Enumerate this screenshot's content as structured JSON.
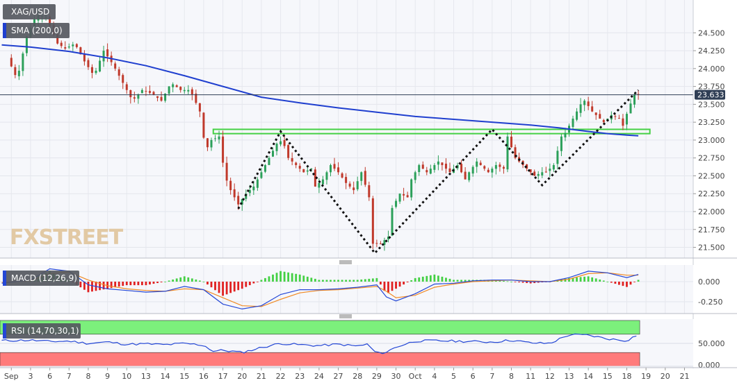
{
  "chart_data": [
    {
      "type": "candlestick",
      "symbol": "XAG/USD",
      "indicator_label": "SMA (200,0)",
      "last_price_label": "23.633",
      "last_price": 23.633,
      "watermark": "FXSTREET",
      "y_ticks": [
        "24.500",
        "24.250",
        "24.000",
        "23.750",
        "23.500",
        "23.250",
        "23.000",
        "22.750",
        "22.500",
        "22.250",
        "22.000",
        "21.750",
        "21.500"
      ],
      "ylim": [
        21.35,
        24.92
      ],
      "x_ticks": [
        {
          "label": "Sep",
          "x": 0
        },
        {
          "label": "3",
          "x": 1
        },
        {
          "label": "6",
          "x": 2
        },
        {
          "label": "7",
          "x": 3
        },
        {
          "label": "8",
          "x": 4
        },
        {
          "label": "9",
          "x": 5
        },
        {
          "label": "10",
          "x": 6
        },
        {
          "label": "13",
          "x": 7
        },
        {
          "label": "14",
          "x": 8
        },
        {
          "label": "15",
          "x": 9
        },
        {
          "label": "16",
          "x": 10
        },
        {
          "label": "17",
          "x": 11
        },
        {
          "label": "20",
          "x": 12
        },
        {
          "label": "21",
          "x": 13
        },
        {
          "label": "22",
          "x": 14
        },
        {
          "label": "23",
          "x": 15
        },
        {
          "label": "24",
          "x": 16
        },
        {
          "label": "27",
          "x": 17
        },
        {
          "label": "28",
          "x": 18
        },
        {
          "label": "29",
          "x": 19
        },
        {
          "label": "30",
          "x": 20
        },
        {
          "label": "Oct",
          "x": 21
        },
        {
          "label": "4",
          "x": 22
        },
        {
          "label": "5",
          "x": 23
        },
        {
          "label": "6",
          "x": 24
        },
        {
          "label": "7",
          "x": 25
        },
        {
          "label": "8",
          "x": 26
        },
        {
          "label": "11",
          "x": 27
        },
        {
          "label": "12",
          "x": 28
        },
        {
          "label": "13",
          "x": 29
        },
        {
          "label": "14",
          "x": 30
        },
        {
          "label": "15",
          "x": 31
        },
        {
          "label": "18",
          "x": 32
        },
        {
          "label": "19",
          "x": 33
        },
        {
          "label": "20",
          "x": 34
        },
        {
          "label": "21",
          "x": 35
        }
      ],
      "price_path": [
        [
          0,
          24.15
        ],
        [
          0.5,
          23.85
        ],
        [
          1,
          24.45
        ],
        [
          1.5,
          24.75
        ],
        [
          2,
          24.72
        ],
        [
          2.6,
          24.35
        ],
        [
          3,
          24.28
        ],
        [
          3.5,
          24.35
        ],
        [
          4,
          24.1
        ],
        [
          4.5,
          23.9
        ],
        [
          5,
          24.25
        ],
        [
          5.5,
          24.05
        ],
        [
          6,
          23.8
        ],
        [
          6.5,
          23.55
        ],
        [
          7,
          23.7
        ],
        [
          7.5,
          23.65
        ],
        [
          8,
          23.55
        ],
        [
          8.5,
          23.8
        ],
        [
          9,
          23.7
        ],
        [
          9.5,
          23.7
        ],
        [
          10,
          23.4
        ],
        [
          10.3,
          22.85
        ],
        [
          10.6,
          23.0
        ],
        [
          11,
          23.05
        ],
        [
          11.3,
          22.5
        ],
        [
          11.6,
          22.3
        ],
        [
          12,
          22.1
        ],
        [
          12.4,
          22.25
        ],
        [
          12.8,
          22.35
        ],
        [
          13.2,
          22.55
        ],
        [
          13.6,
          22.75
        ],
        [
          14,
          22.95
        ],
        [
          14.3,
          23.0
        ],
        [
          14.6,
          22.75
        ],
        [
          15,
          22.65
        ],
        [
          15.4,
          22.55
        ],
        [
          15.8,
          22.6
        ],
        [
          16,
          22.35
        ],
        [
          16.4,
          22.45
        ],
        [
          16.8,
          22.65
        ],
        [
          17.2,
          22.55
        ],
        [
          17.6,
          22.4
        ],
        [
          18,
          22.3
        ],
        [
          18.4,
          22.55
        ],
        [
          18.8,
          22.2
        ],
        [
          19,
          21.55
        ],
        [
          19.4,
          21.55
        ],
        [
          19.8,
          21.65
        ],
        [
          20,
          22.05
        ],
        [
          20.4,
          22.25
        ],
        [
          20.8,
          22.2
        ],
        [
          21,
          22.45
        ],
        [
          21.4,
          22.65
        ],
        [
          21.8,
          22.55
        ],
        [
          22,
          22.6
        ],
        [
          22.4,
          22.7
        ],
        [
          22.8,
          22.6
        ],
        [
          23,
          22.55
        ],
        [
          23.4,
          22.65
        ],
        [
          23.8,
          22.45
        ],
        [
          24,
          22.55
        ],
        [
          24.4,
          22.7
        ],
        [
          24.8,
          22.6
        ],
        [
          25,
          22.55
        ],
        [
          25.4,
          22.65
        ],
        [
          25.8,
          22.6
        ],
        [
          26,
          23.05
        ],
        [
          26.4,
          22.75
        ],
        [
          26.8,
          22.65
        ],
        [
          27,
          22.6
        ],
        [
          27.4,
          22.5
        ],
        [
          27.8,
          22.55
        ],
        [
          28,
          22.55
        ],
        [
          28.4,
          22.65
        ],
        [
          28.8,
          23.05
        ],
        [
          29,
          23.1
        ],
        [
          29.4,
          23.3
        ],
        [
          29.8,
          23.5
        ],
        [
          30,
          23.55
        ],
        [
          30.4,
          23.4
        ],
        [
          30.8,
          23.3
        ],
        [
          31,
          23.25
        ],
        [
          31.4,
          23.35
        ],
        [
          31.8,
          23.3
        ],
        [
          32,
          23.2
        ],
        [
          32.3,
          23.45
        ],
        [
          32.6,
          23.633
        ]
      ],
      "sma_200": [
        [
          -0.5,
          24.33
        ],
        [
          1,
          24.3
        ],
        [
          3,
          24.24
        ],
        [
          5,
          24.15
        ],
        [
          7,
          24.04
        ],
        [
          9,
          23.9
        ],
        [
          11,
          23.75
        ],
        [
          13,
          23.6
        ],
        [
          15,
          23.52
        ],
        [
          17,
          23.45
        ],
        [
          19,
          23.39
        ],
        [
          21,
          23.33
        ],
        [
          23,
          23.29
        ],
        [
          25,
          23.25
        ],
        [
          27,
          23.21
        ],
        [
          28.5,
          23.17
        ],
        [
          30,
          23.12
        ],
        [
          31,
          23.09
        ],
        [
          32,
          23.07
        ],
        [
          32.6,
          23.06
        ]
      ],
      "resistance_zone": {
        "x_start": 10.5,
        "x_end": 33.2,
        "low": 23.09,
        "high": 23.15
      },
      "pattern_line": [
        [
          11.8,
          22.04
        ],
        [
          14,
          23.12
        ],
        [
          18.9,
          21.42
        ],
        [
          25,
          23.15
        ],
        [
          27.6,
          22.37
        ],
        [
          32.6,
          23.7
        ]
      ],
      "candle_up_color": "#2ca05a",
      "candle_down_color": "#c0392b",
      "sma_color": "#1f3fcf",
      "zone_color": "#44d044",
      "last_price_color": "#2f3e55"
    },
    {
      "type": "macd",
      "label": "MACD (12,26,9)",
      "y_ticks": [
        "0.000",
        "-0.250"
      ],
      "ylim": [
        -0.38,
        0.19
      ],
      "macd_line": [
        [
          -0.5,
          -0.02
        ],
        [
          1,
          0.02
        ],
        [
          2,
          0.16
        ],
        [
          3,
          0.13
        ],
        [
          4,
          -0.04
        ],
        [
          5,
          -0.09
        ],
        [
          6,
          -0.11
        ],
        [
          7,
          -0.13
        ],
        [
          8,
          -0.12
        ],
        [
          9,
          -0.06
        ],
        [
          10,
          -0.1
        ],
        [
          11,
          -0.28
        ],
        [
          12,
          -0.34
        ],
        [
          13,
          -0.3
        ],
        [
          14,
          -0.16
        ],
        [
          15,
          -0.1
        ],
        [
          16,
          -0.1
        ],
        [
          17,
          -0.09
        ],
        [
          18,
          -0.07
        ],
        [
          19,
          -0.04
        ],
        [
          19.5,
          -0.19
        ],
        [
          20,
          -0.24
        ],
        [
          21,
          -0.15
        ],
        [
          22,
          -0.03
        ],
        [
          23,
          -0.02
        ],
        [
          24,
          0.01
        ],
        [
          25,
          0.02
        ],
        [
          26,
          0.02
        ],
        [
          27,
          -0.0
        ],
        [
          28,
          -0.0
        ],
        [
          29,
          0.05
        ],
        [
          30,
          0.13
        ],
        [
          31,
          0.11
        ],
        [
          32,
          0.05
        ],
        [
          32.6,
          0.09
        ]
      ],
      "signal_line": [
        [
          -0.5,
          -0.01
        ],
        [
          1,
          0.01
        ],
        [
          2,
          0.1
        ],
        [
          3,
          0.12
        ],
        [
          4,
          0.02
        ],
        [
          5,
          -0.05
        ],
        [
          6,
          -0.09
        ],
        [
          7,
          -0.11
        ],
        [
          8,
          -0.12
        ],
        [
          9,
          -0.09
        ],
        [
          10,
          -0.1
        ],
        [
          11,
          -0.2
        ],
        [
          12,
          -0.3
        ],
        [
          13,
          -0.31
        ],
        [
          14,
          -0.22
        ],
        [
          15,
          -0.14
        ],
        [
          16,
          -0.11
        ],
        [
          17,
          -0.1
        ],
        [
          18,
          -0.08
        ],
        [
          19,
          -0.06
        ],
        [
          19.5,
          -0.12
        ],
        [
          20,
          -0.2
        ],
        [
          21,
          -0.17
        ],
        [
          22,
          -0.07
        ],
        [
          23,
          -0.03
        ],
        [
          24,
          -0.0
        ],
        [
          25,
          0.01
        ],
        [
          26,
          0.02
        ],
        [
          27,
          0.01
        ],
        [
          28,
          0.0
        ],
        [
          29,
          0.03
        ],
        [
          30,
          0.1
        ],
        [
          31,
          0.11
        ],
        [
          32,
          0.08
        ],
        [
          32.6,
          0.08
        ]
      ],
      "histogram_colors": {
        "positive": "#44d044",
        "negative": "#e02020"
      },
      "line_colors": {
        "macd": "#2447d6",
        "signal": "#f08a24"
      }
    },
    {
      "type": "rsi",
      "label": "RSI (14,70,30,1)",
      "y_ticks": [
        "50.000",
        "0.000"
      ],
      "ylim": [
        0,
        100
      ],
      "overbought": 70,
      "oversold": 30,
      "rsi_line": [
        [
          -0.5,
          56
        ],
        [
          1,
          57
        ],
        [
          2,
          54
        ],
        [
          3,
          55
        ],
        [
          4,
          50
        ],
        [
          5,
          53
        ],
        [
          6,
          48
        ],
        [
          7,
          49
        ],
        [
          8,
          47
        ],
        [
          9,
          50
        ],
        [
          10,
          46
        ],
        [
          10.5,
          33
        ],
        [
          11,
          35
        ],
        [
          12,
          30
        ],
        [
          13,
          41
        ],
        [
          14,
          50
        ],
        [
          15,
          47
        ],
        [
          16,
          45
        ],
        [
          17,
          48
        ],
        [
          18,
          44
        ],
        [
          18.5,
          48
        ],
        [
          19,
          28
        ],
        [
          19.5,
          31
        ],
        [
          20,
          42
        ],
        [
          21,
          55
        ],
        [
          22,
          56
        ],
        [
          23,
          55
        ],
        [
          24,
          54
        ],
        [
          25,
          53
        ],
        [
          26,
          57
        ],
        [
          27,
          51
        ],
        [
          28,
          50
        ],
        [
          29,
          69
        ],
        [
          30,
          68
        ],
        [
          31,
          60
        ],
        [
          32,
          56
        ],
        [
          32.6,
          70
        ]
      ],
      "overbought_color": "#7cf07c",
      "oversold_color": "#ff7b7b",
      "line_color": "#2447d6"
    }
  ]
}
